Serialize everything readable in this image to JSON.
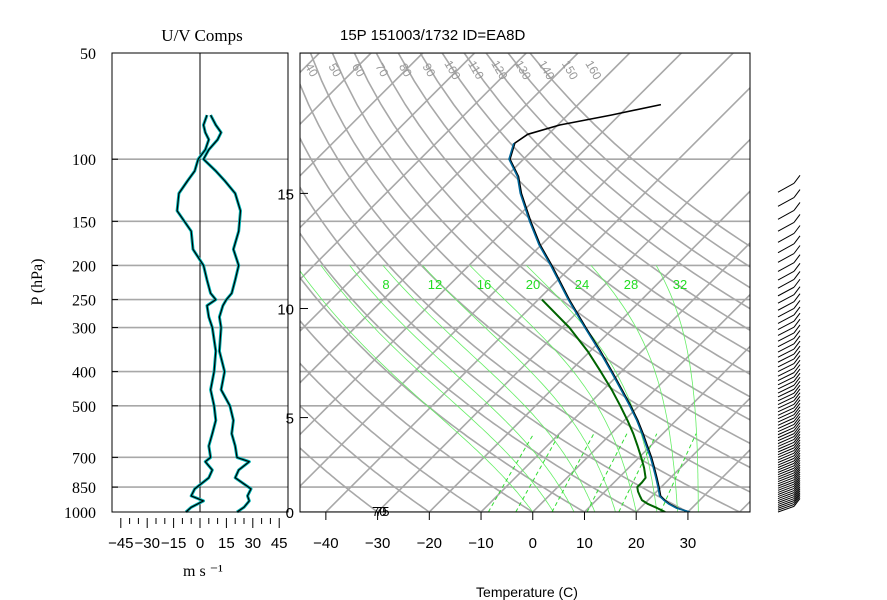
{
  "chart_data": [
    {
      "type": "line",
      "title": "U/V Comps",
      "xlabel": "m s ⁻¹",
      "ylabel": "P (hPa)",
      "xlim": [
        -50,
        50
      ],
      "ylim": [
        1000,
        50
      ],
      "y_scale": "log",
      "x_tick_labels": [
        "−45",
        "−30",
        "−15",
        "0",
        "15",
        "30",
        "45"
      ],
      "x_tick_values": [
        -45,
        -30,
        -15,
        0,
        15,
        30,
        45
      ],
      "y_tick_labels": [
        "50",
        "100",
        "150",
        "200",
        "250",
        "300",
        "400",
        "500",
        "700",
        "850",
        "1000"
      ],
      "y_tick_values": [
        50,
        100,
        150,
        200,
        250,
        300,
        400,
        500,
        700,
        850,
        1000
      ],
      "grid": true,
      "series": [
        {
          "color": "#000000",
          "pressure": [
            1000,
            970,
            930,
            900,
            860,
            800,
            760,
            720,
            700,
            650,
            600,
            550,
            500,
            450,
            400,
            350,
            300,
            280,
            260,
            250,
            240,
            220,
            200,
            180,
            160,
            140,
            125,
            115,
            108,
            100,
            94,
            88,
            84,
            80,
            75
          ],
          "values": [
            -8,
            -5,
            2,
            -5,
            -3,
            5,
            7,
            3,
            6,
            5,
            7,
            9,
            8,
            6,
            8,
            9,
            7,
            5,
            4,
            9,
            6,
            4,
            2,
            -4,
            -5,
            -13,
            -12,
            -7,
            -3,
            -1,
            3,
            5,
            3,
            2,
            4
          ]
        },
        {
          "color": "#000000",
          "pressure": [
            1000,
            970,
            930,
            900,
            860,
            800,
            760,
            720,
            700,
            650,
            600,
            550,
            500,
            450,
            400,
            350,
            300,
            280,
            260,
            250,
            240,
            220,
            200,
            180,
            160,
            140,
            125,
            115,
            108,
            100,
            94,
            88,
            84,
            80,
            75
          ],
          "values": [
            21,
            25,
            28,
            27,
            29,
            20,
            22,
            28,
            21,
            20,
            18,
            19,
            17,
            12,
            14,
            11,
            12,
            11,
            13,
            15,
            18,
            20,
            22,
            19,
            22,
            23,
            20,
            14,
            9,
            2,
            5,
            10,
            12,
            9,
            6
          ]
        }
      ]
    },
    {
      "type": "line",
      "title": "15P 151003/1732 ID=EA8D",
      "xlabel": "Temperature (C)",
      "xlim": [
        -45,
        42
      ],
      "ylim": [
        1000,
        50
      ],
      "y_scale": "log",
      "x_tick_labels": [
        "−40",
        "−30",
        "−20",
        "−10",
        "0",
        "10",
        "20",
        "30"
      ],
      "x_tick_values": [
        -40,
        -30,
        -20,
        -10,
        0,
        10,
        20,
        30
      ],
      "height_tick_labels": [
        "0",
        "5",
        "10",
        "15"
      ],
      "height_km": [
        0,
        5,
        10,
        15
      ],
      "height_tick_pressure": [
        1000,
        540,
        265,
        125
      ],
      "mixing_ratio_labels": [
        "8",
        "12",
        "16",
        "20",
        "24",
        "28",
        "32"
      ],
      "theta_labels": [
        "40",
        "50",
        "60",
        "70",
        "80",
        "90",
        "100",
        "110",
        "120",
        "130",
        "140",
        "150",
        "160"
      ],
      "bottom_labels": [
        "70",
        "75"
      ],
      "series": [
        {
          "color": "#000000",
          "pressure": [
            1000,
            975,
            950,
            925,
            900,
            850,
            800,
            750,
            700,
            650,
            600,
            550,
            500,
            450,
            400,
            350,
            300,
            250,
            200,
            175,
            150,
            125,
            112,
            100,
            90,
            85,
            80,
            75,
            70
          ],
          "values": [
            30.2,
            27.2,
            25.0,
            23.2,
            21.6,
            19.6,
            17.4,
            15.0,
            12.4,
            9.4,
            6.2,
            2.6,
            -1.6,
            -6.4,
            -11.8,
            -18.0,
            -25.4,
            -34.0,
            -44.0,
            -50.2,
            -56.6,
            -63.8,
            -67.6,
            -72.6,
            -74.8,
            -74.0,
            -69.6,
            -61.6,
            -54.0
          ]
        },
        {
          "color": "#006699",
          "pressure": [
            1000,
            975,
            950,
            925,
            900,
            850,
            800,
            750,
            700,
            650,
            600,
            550,
            500,
            450,
            400,
            350,
            300,
            250,
            200,
            175,
            150,
            125,
            112,
            100,
            90
          ],
          "values": [
            30.4,
            27.0,
            24.8,
            23.0,
            21.4,
            19.4,
            17.2,
            14.8,
            12.2,
            9.2,
            6.0,
            2.4,
            -1.8,
            -6.6,
            -12.0,
            -18.2,
            -25.6,
            -34.2,
            -44.2,
            -50.4,
            -56.8,
            -64.0,
            -67.8,
            -72.8,
            -75.0
          ]
        },
        {
          "color": "#006400",
          "pressure": [
            1000,
            975,
            950,
            925,
            900,
            875,
            850,
            825,
            800,
            750,
            700,
            650,
            600,
            550,
            500,
            450,
            400,
            350,
            300,
            250
          ],
          "values": [
            25.6,
            23.3,
            20.8,
            18.8,
            17.6,
            16.4,
            15.4,
            15.4,
            15.2,
            13.0,
            10.4,
            7.5,
            4.3,
            0.6,
            -3.6,
            -8.4,
            -14.0,
            -20.5,
            -28.6,
            -39.3
          ]
        }
      ]
    }
  ]
}
